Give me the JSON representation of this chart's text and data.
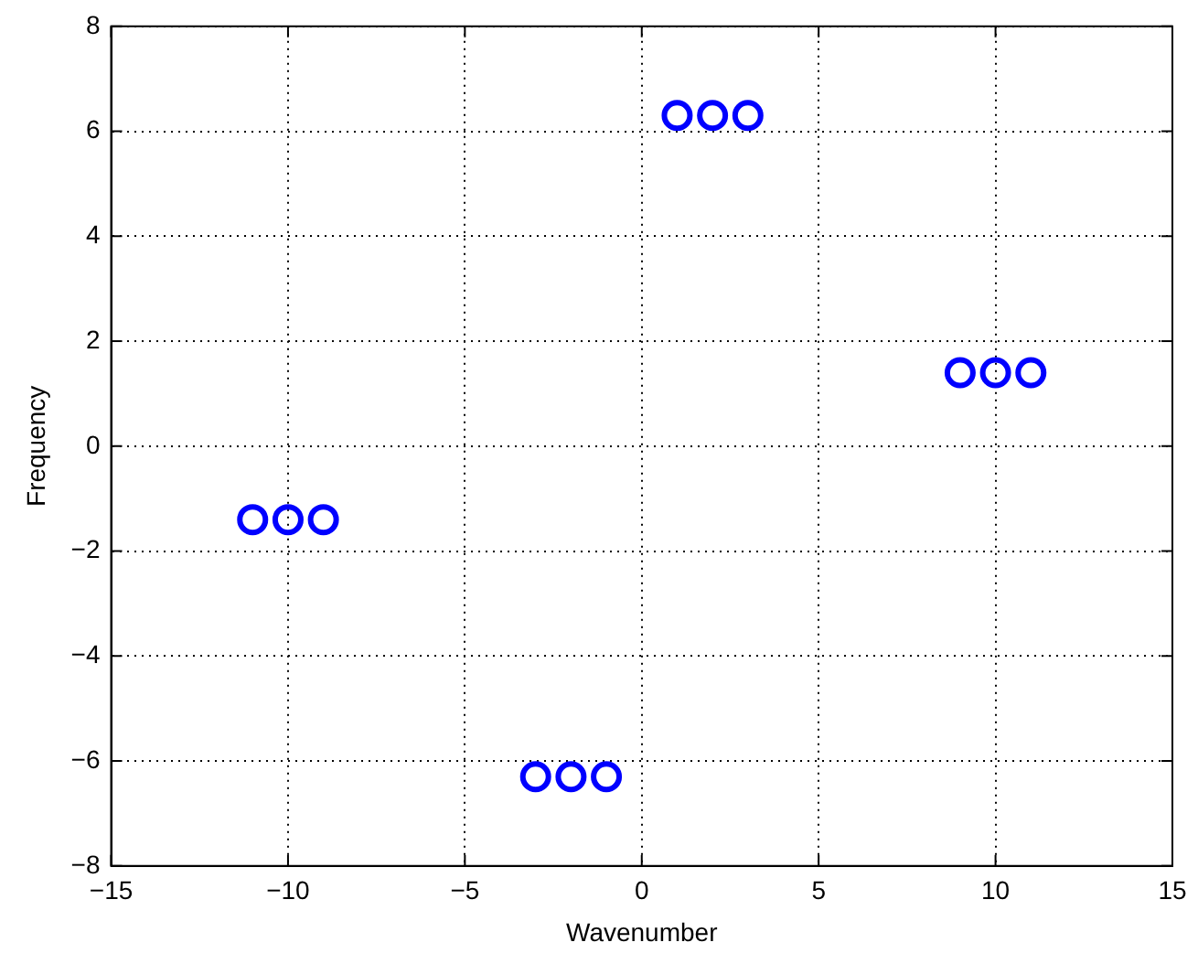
{
  "chart_data": {
    "type": "scatter",
    "xlabel": "Wavenumber",
    "ylabel": "Frequency",
    "xlim": [
      -15,
      15
    ],
    "xticks": [
      -15,
      -10,
      -5,
      0,
      5,
      10,
      15
    ],
    "ylim": [
      -8,
      8
    ],
    "yticks": [
      -8,
      -6,
      -4,
      -2,
      0,
      2,
      4,
      6,
      8
    ],
    "grid": true,
    "marker": "circle",
    "series": [
      {
        "color": "#0000ff",
        "x": [
          -11,
          -10,
          -9,
          -3,
          -2,
          -1,
          1,
          2,
          3,
          9,
          10,
          11
        ],
        "values": [
          -1.4,
          -1.4,
          -1.4,
          -6.3,
          -6.3,
          -6.3,
          6.3,
          6.3,
          6.3,
          1.4,
          1.4,
          1.4
        ]
      }
    ]
  }
}
